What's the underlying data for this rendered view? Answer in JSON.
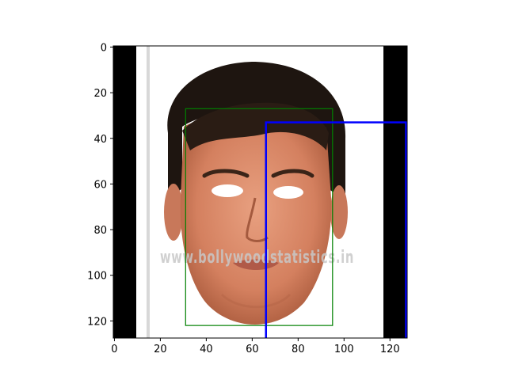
{
  "plot": {
    "xlim": [
      -0.5,
      127.5
    ],
    "ylim": [
      127.5,
      -0.5
    ],
    "x_ticks": [
      0,
      20,
      40,
      60,
      80,
      100,
      120
    ],
    "y_ticks": [
      0,
      20,
      40,
      60,
      80,
      100,
      120
    ],
    "x_tick_labels": [
      "0",
      "20",
      "40",
      "60",
      "80",
      "100",
      "120"
    ],
    "y_tick_labels": [
      "0",
      "20",
      "40",
      "60",
      "80",
      "100",
      "120"
    ]
  },
  "image": {
    "watermark": "www.bollywoodstatistics.in"
  },
  "boxes": [
    {
      "name": "green-box",
      "color": "#008000",
      "x0": 31,
      "y0": 27,
      "x1": 95,
      "y1": 122,
      "stroke": "thin"
    },
    {
      "name": "blue-box",
      "color": "#0000ff",
      "x0": 66,
      "y0": 33,
      "x1": 127,
      "y1": 128,
      "stroke": "thick"
    }
  ],
  "colors": {
    "pad": "#000000",
    "hair": "#1e1510",
    "skin": "#d9896a",
    "skin_shadow": "#b8684a",
    "eye": "#ffffff"
  }
}
